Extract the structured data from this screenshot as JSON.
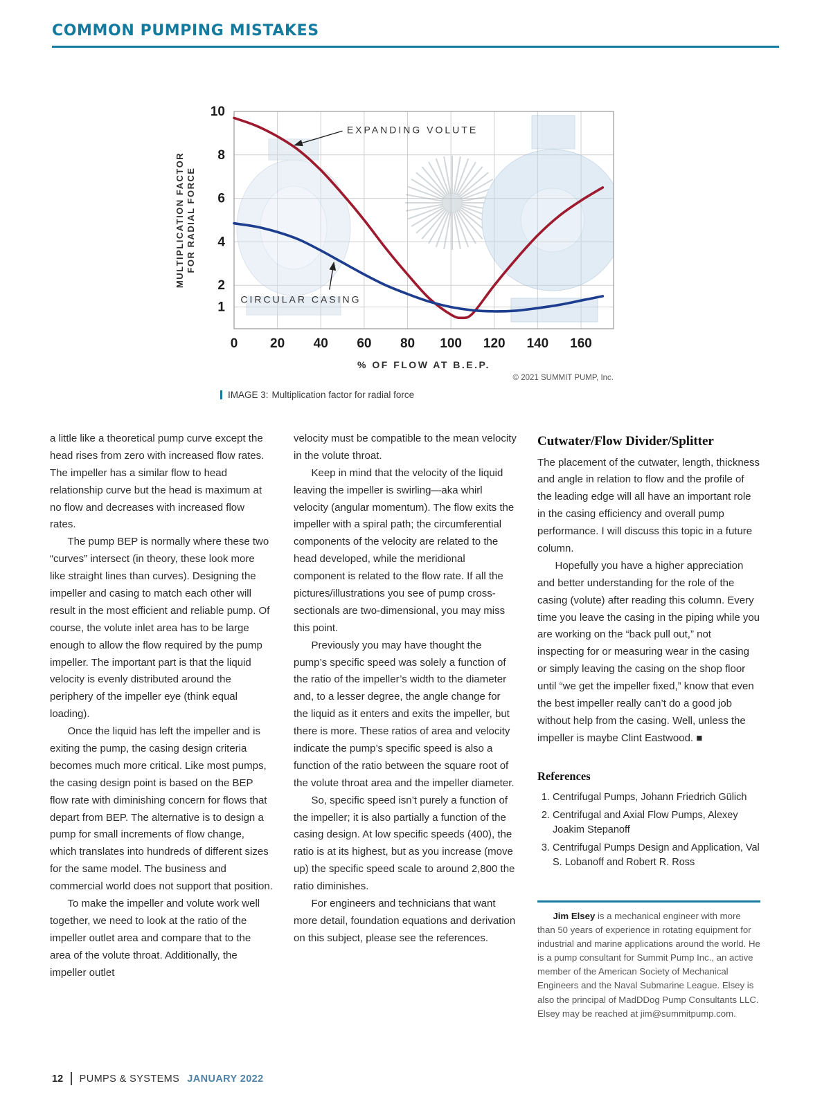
{
  "header": {
    "title": "COMMON PUMPING MISTAKES"
  },
  "figure": {
    "caption_label": "IMAGE 3:",
    "caption_text": "Multiplication factor for radial force"
  },
  "chart_data": {
    "type": "line",
    "title": "",
    "xlabel": "% OF FLOW AT B.E.P.",
    "ylabel_lines": [
      "MULTIPLICATION FACTOR",
      "FOR RADIAL FORCE"
    ],
    "xlim": [
      0,
      175
    ],
    "ylim": [
      0,
      10
    ],
    "x_ticks": [
      0,
      20,
      40,
      60,
      80,
      100,
      120,
      140,
      160
    ],
    "y_ticks": [
      1,
      2,
      4,
      6,
      8,
      10
    ],
    "grid": true,
    "credit": "© 2021 SUMMIT PUMP, Inc.",
    "series": [
      {
        "name": "EXPANDING VOLUTE",
        "color": "#9e1b2f",
        "x": [
          0,
          10,
          20,
          30,
          40,
          50,
          60,
          70,
          80,
          90,
          100,
          105,
          110,
          120,
          130,
          140,
          150,
          160,
          170
        ],
        "y": [
          9.7,
          9.35,
          8.85,
          8.2,
          7.3,
          6.2,
          5.0,
          3.7,
          2.5,
          1.4,
          0.65,
          0.5,
          0.7,
          2.0,
          3.2,
          4.3,
          5.2,
          5.9,
          6.5
        ]
      },
      {
        "name": "CIRCULAR CASING",
        "color": "#1d3d8f",
        "x": [
          0,
          10,
          20,
          30,
          40,
          50,
          60,
          70,
          80,
          90,
          100,
          110,
          120,
          130,
          140,
          150,
          160,
          170
        ],
        "y": [
          4.85,
          4.7,
          4.45,
          4.1,
          3.6,
          3.05,
          2.5,
          2.0,
          1.6,
          1.25,
          1.0,
          0.85,
          0.8,
          0.83,
          0.95,
          1.1,
          1.3,
          1.5
        ]
      }
    ],
    "annotations": [
      {
        "label": "EXPANDING VOLUTE",
        "text_x": 52,
        "text_y": 9.15,
        "arrow_from_x": 50,
        "arrow_from_y": 9.1,
        "arrow_to_x": 28,
        "arrow_to_y": 8.45
      },
      {
        "label": "CIRCULAR CASING",
        "text_x": 3,
        "text_y": 1.35,
        "arrow_from_x": 44,
        "arrow_from_y": 1.8,
        "arrow_to_x": 46,
        "arrow_to_y": 3.05
      }
    ]
  },
  "columns": {
    "col1": [
      "a little like a theoretical pump curve except the head rises from zero with increased flow rates. The impeller has a similar flow to head relationship curve but the head is maximum at no flow and decreases with increased flow rates.",
      "The pump BEP is normally where these two “curves” intersect (in theory, these look more like straight lines than curves). Designing the impeller and casing to match each other will result in the most efficient and reliable pump. Of course, the volute inlet area has to be large enough to allow the flow required by the pump impeller. The important part is that the liquid velocity is evenly distributed around the periphery of the impeller eye (think equal loading).",
      "Once the liquid has left the impeller and is exiting the pump, the casing design criteria becomes much more critical. Like most pumps, the casing design point is based on the BEP flow rate with diminishing concern for flows that depart from BEP. The alternative is to design a pump for small increments of flow change, which translates into hundreds of different sizes for the same model. The business and commercial world does not support that position.",
      "To make the impeller and volute work well together, we need to look at the ratio of the impeller outlet area and compare that to the area of the volute throat. Additionally, the impeller outlet"
    ],
    "col2": [
      "velocity must be compatible to the mean velocity in the volute throat.",
      "Keep in mind that the velocity of the liquid leaving the impeller is swirling—aka whirl velocity (angular momentum). The flow exits the impeller with a spiral path; the circumferential components of the velocity are related to the head developed, while the meridional component is related to the flow rate. If all the pictures/illustrations you see of pump cross-sectionals are two-dimensional, you may miss this point.",
      "Previously you may have thought the pump’s specific speed was solely a function of the ratio of the impeller’s width to the diameter and, to a lesser degree, the angle change for the liquid as it enters and exits the impeller, but there is more. These ratios of area and velocity indicate the pump’s specific speed is also a function of the ratio between the square root of the volute throat area and the impeller diameter.",
      "So, specific speed isn’t purely a function of the impeller; it is also partially a function of the casing design. At low specific speeds (400), the ratio is at its highest, but as you increase (move up) the specific speed scale to around 2,800 the ratio diminishes.",
      "For engineers and technicians that want more detail, foundation equations and derivation on this subject, please see the references."
    ],
    "col3": {
      "heading": "Cutwater/Flow Divider/Splitter",
      "paragraphs": [
        "The placement of the cutwater, length, thickness and angle in relation to flow and the profile of the leading edge will all have an important role in the casing efficiency and overall pump performance. I will discuss this topic in a future column.",
        "Hopefully you have a higher appreciation and better understanding for the role of the casing (volute) after reading this column. Every time you leave the casing in the piping while you are working on the “back pull out,” not inspecting for or measuring wear in the casing or simply leaving the casing on the shop floor until “we get the impeller fixed,” know that even the best impeller really can’t do a good job without help from the casing. Well, unless the impeller is maybe Clint Eastwood. ■"
      ]
    }
  },
  "references": {
    "heading": "References",
    "items": [
      "Centrifugal Pumps, Johann Friedrich Gülich",
      "Centrifugal and Axial Flow Pumps, Alexey Joakim Stepanoff",
      "Centrifugal Pumps Design and Application, Val S. Lobanoff and Robert R. Ross"
    ]
  },
  "bio": {
    "name": "Jim Elsey",
    "text": "is a mechanical engineer with more than 50 years of experience in rotating equipment for industrial and marine applications around the world. He is a pump consultant for Summit Pump Inc., an active member of the American Society of Mechanical Engineers and the Naval Submarine League. Elsey is also the principal of MadDDog Pump Consultants LLC. Elsey may be reached at jim@summitpump.com."
  },
  "footer": {
    "page_number": "12",
    "magazine": "PUMPS & SYSTEMS",
    "issue": "JANUARY 2022"
  }
}
